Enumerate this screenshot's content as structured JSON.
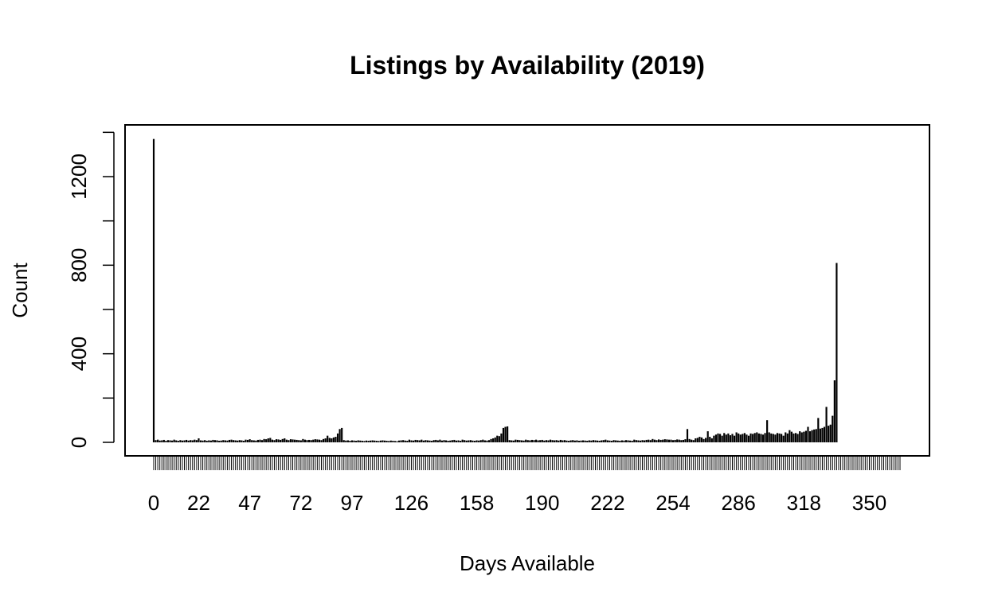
{
  "chart_data": {
    "type": "bar",
    "title": "Listings by Availability (2019)",
    "xlabel": "Days Available",
    "ylabel": "Count",
    "ylim": [
      0,
      1400
    ],
    "y_ticks": [
      0,
      400,
      800,
      1200
    ],
    "x_tick_labels": [
      0,
      22,
      47,
      72,
      97,
      126,
      158,
      190,
      222,
      254,
      286,
      318,
      350
    ],
    "categories_range": [
      0,
      365
    ],
    "grid": false,
    "legend": "none",
    "bar_color": "#000000",
    "values": [
      1370,
      10,
      12,
      8,
      9,
      11,
      7,
      10,
      9,
      8,
      12,
      9,
      7,
      10,
      8,
      9,
      11,
      8,
      10,
      9,
      12,
      10,
      18,
      9,
      8,
      10,
      7,
      9,
      8,
      11,
      10,
      9,
      7,
      8,
      10,
      9,
      8,
      11,
      12,
      10,
      9,
      8,
      10,
      9,
      7,
      12,
      11,
      14,
      10,
      9,
      8,
      11,
      12,
      10,
      15,
      14,
      18,
      20,
      12,
      10,
      14,
      13,
      11,
      15,
      18,
      12,
      10,
      14,
      13,
      12,
      11,
      10,
      9,
      15,
      12,
      10,
      11,
      10,
      12,
      14,
      13,
      12,
      10,
      15,
      18,
      30,
      20,
      18,
      22,
      25,
      40,
      60,
      65,
      10,
      8,
      9,
      7,
      9,
      8,
      7,
      9,
      8,
      7,
      6,
      8,
      7,
      8,
      9,
      8,
      7,
      6,
      8,
      9,
      8,
      7,
      6,
      8,
      7,
      6,
      5,
      8,
      9,
      10,
      8,
      7,
      12,
      9,
      8,
      11,
      10,
      9,
      12,
      8,
      10,
      9,
      8,
      7,
      10,
      11,
      9,
      12,
      8,
      10,
      9,
      7,
      8,
      10,
      11,
      8,
      9,
      7,
      12,
      10,
      8,
      9,
      10,
      8,
      7,
      9,
      8,
      10,
      12,
      9,
      8,
      10,
      15,
      18,
      22,
      30,
      28,
      40,
      65,
      70,
      72,
      10,
      9,
      8,
      12,
      11,
      10,
      9,
      8,
      12,
      10,
      9,
      11,
      10,
      12,
      9,
      10,
      11,
      8,
      10,
      9,
      12,
      10,
      9,
      10,
      8,
      11,
      9,
      10,
      8,
      7,
      9,
      10,
      8,
      9,
      7,
      8,
      9,
      8,
      7,
      9,
      8,
      10,
      9,
      8,
      7,
      9,
      10,
      12,
      9,
      8,
      7,
      10,
      9,
      8,
      7,
      9,
      8,
      10,
      9,
      8,
      7,
      12,
      10,
      9,
      8,
      10,
      9,
      11,
      12,
      10,
      15,
      12,
      10,
      13,
      11,
      12,
      14,
      13,
      12,
      12,
      10,
      11,
      13,
      12,
      10,
      11,
      14,
      60,
      15,
      12,
      10,
      18,
      20,
      25,
      22,
      15,
      20,
      50,
      25,
      18,
      30,
      35,
      40,
      38,
      30,
      42,
      35,
      40,
      32,
      38,
      30,
      45,
      40,
      35,
      38,
      42,
      35,
      30,
      40,
      38,
      42,
      45,
      40,
      38,
      35,
      42,
      100,
      45,
      40,
      38,
      35,
      42,
      40,
      38,
      30,
      45,
      40,
      55,
      48,
      40,
      42,
      38,
      50,
      45,
      48,
      52,
      70,
      50,
      55,
      58,
      60,
      110,
      62,
      65,
      70,
      160,
      75,
      80,
      120,
      280,
      810
    ]
  }
}
